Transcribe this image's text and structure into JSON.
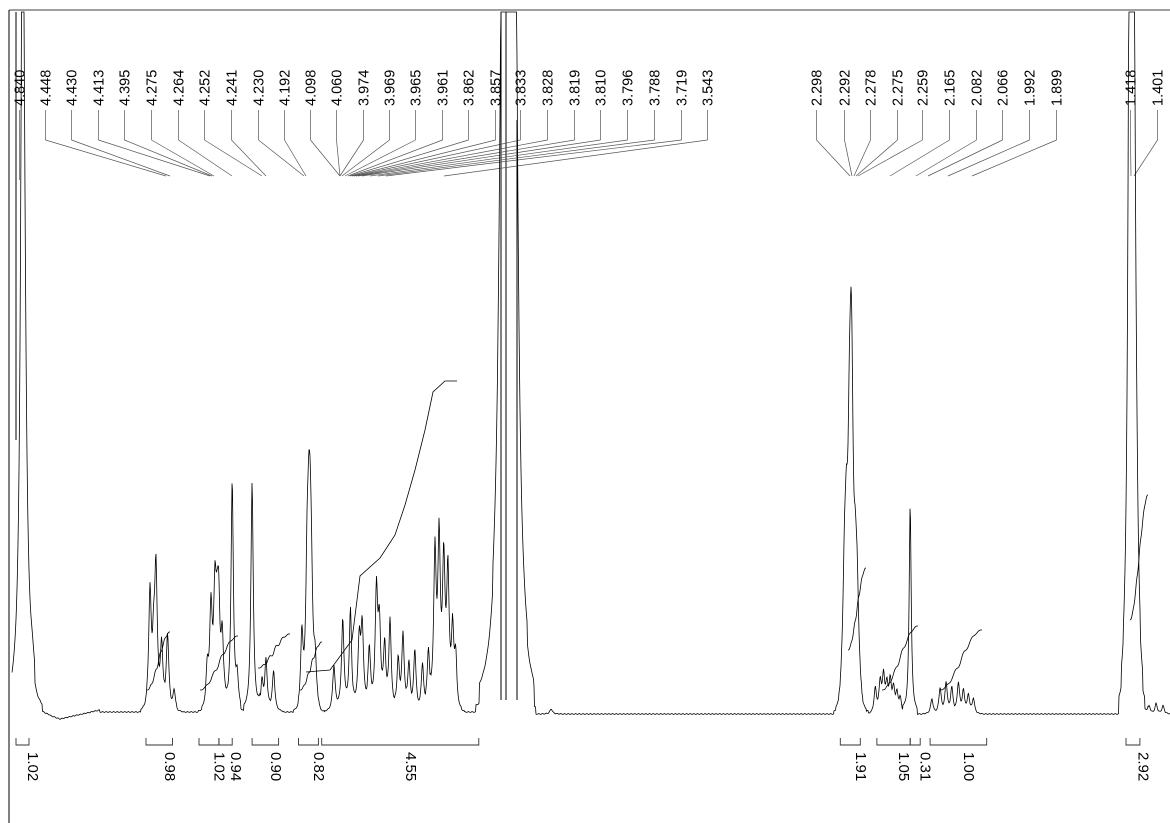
{
  "chart_data": {
    "type": "line",
    "title": "",
    "xlabel": "",
    "ylabel": "",
    "x_axis_reversed": true,
    "line_color": "#000000",
    "peak_labels": [
      "4.840",
      "4.448",
      "4.430",
      "4.413",
      "4.395",
      "4.275",
      "4.264",
      "4.252",
      "4.241",
      "4.230",
      "4.192",
      "4.098",
      "4.060",
      "3.974",
      "3.969",
      "3.965",
      "3.961",
      "3.862",
      "3.857",
      "3.833",
      "3.828",
      "3.819",
      "3.810",
      "3.796",
      "3.788",
      "3.719",
      "3.543",
      "2.298",
      "2.292",
      "2.278",
      "2.275",
      "2.259",
      "2.165",
      "2.082",
      "2.066",
      "1.992",
      "1.899",
      "1.418",
      "1.401"
    ],
    "integrals": [
      {
        "value": "1.02",
        "from": 4.86,
        "to": 4.82
      },
      {
        "value": "0.98",
        "from": 4.46,
        "to": 4.38
      },
      {
        "value": "1.02",
        "from": 4.3,
        "to": 4.24
      },
      {
        "value": "0.94",
        "from": 4.24,
        "to": 4.2
      },
      {
        "value": "0.90",
        "from": 4.14,
        "to": 4.06
      },
      {
        "value": "0.82",
        "from": 4.0,
        "to": 3.94
      },
      {
        "value": "4.55",
        "from": 3.93,
        "to": 3.52
      },
      {
        "value": "1.91",
        "from": 2.31,
        "to": 2.25
      },
      {
        "value": "1.05",
        "from": 2.2,
        "to": 2.1
      },
      {
        "value": "0.31",
        "from": 2.1,
        "to": 2.07
      },
      {
        "value": "1.00",
        "from": 2.04,
        "to": 1.87
      },
      {
        "value": "2.92",
        "from": 1.44,
        "to": 1.38
      }
    ]
  }
}
